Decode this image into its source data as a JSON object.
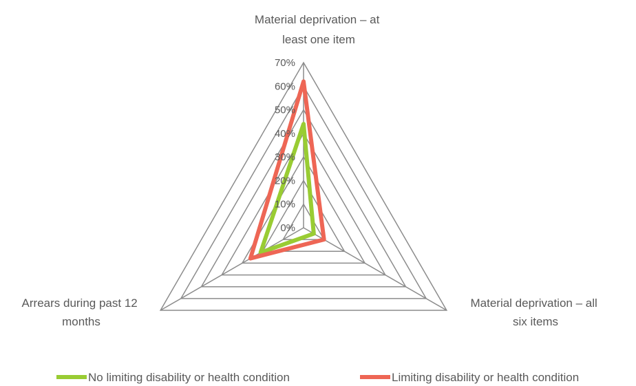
{
  "chart_data": {
    "type": "radar",
    "axes": [
      [
        "Material deprivation – at",
        "least one item"
      ],
      [
        "Material deprivation – all",
        "six items"
      ],
      [
        "Arrears during past 12",
        "months"
      ]
    ],
    "tick_labels": [
      "0%",
      "10%",
      "20%",
      "30%",
      "40%",
      "50%",
      "60%",
      "70%"
    ],
    "rlim": [
      0,
      70
    ],
    "r_step": 10,
    "series": [
      {
        "name": "No limiting disability or health condition",
        "color": "#99cc33",
        "values": [
          44,
          5,
          21
        ]
      },
      {
        "name": "Limiting disability or health condition",
        "color": "#ee6655",
        "values": [
          62,
          10,
          26
        ]
      }
    ],
    "grid_color": "#8c8c8c",
    "grid": true,
    "legend_position": "bottom"
  }
}
